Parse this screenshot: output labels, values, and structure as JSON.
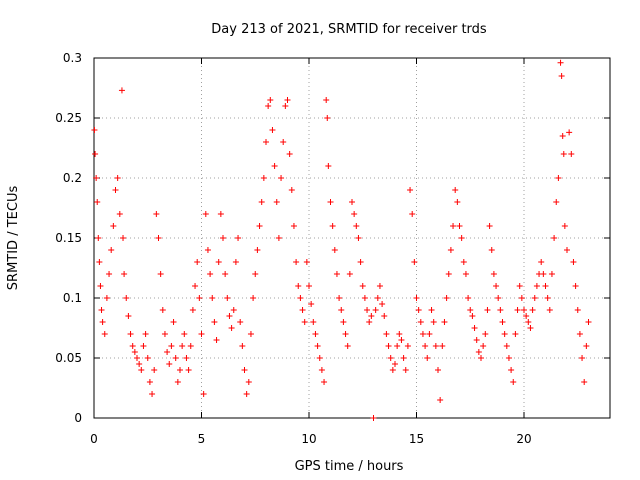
{
  "chart_data": {
    "type": "scatter",
    "title": "Day 213 of 2021, SRMTID for receiver trds",
    "xlabel": "GPS time / hours",
    "ylabel": "SRMTID / TECUs",
    "xlim": [
      0,
      24
    ],
    "ylim": [
      0,
      0.3
    ],
    "xticks": [
      0,
      5,
      10,
      15,
      20
    ],
    "xtick_labels": [
      "0",
      "5",
      "10",
      "15",
      "20"
    ],
    "yticks": [
      0,
      0.05,
      0.1,
      0.15,
      0.2,
      0.25,
      0.3
    ],
    "ytick_labels": [
      "0",
      "0.05",
      "0.1",
      "0.15",
      "0.2",
      "0.25",
      "0.3"
    ],
    "grid": true,
    "marker": "plus",
    "color": "#ff0000",
    "series": [
      {
        "name": "SRMTID",
        "points": [
          [
            0.02,
            0.24
          ],
          [
            0.05,
            0.22
          ],
          [
            0.1,
            0.2
          ],
          [
            0.15,
            0.18
          ],
          [
            0.2,
            0.15
          ],
          [
            0.25,
            0.13
          ],
          [
            0.3,
            0.11
          ],
          [
            0.35,
            0.09
          ],
          [
            0.4,
            0.08
          ],
          [
            0.5,
            0.07
          ],
          [
            0.6,
            0.1
          ],
          [
            0.7,
            0.12
          ],
          [
            0.8,
            0.14
          ],
          [
            0.9,
            0.16
          ],
          [
            1.0,
            0.19
          ],
          [
            1.1,
            0.2
          ],
          [
            1.2,
            0.17
          ],
          [
            1.3,
            0.273
          ],
          [
            1.35,
            0.15
          ],
          [
            1.4,
            0.12
          ],
          [
            1.5,
            0.1
          ],
          [
            1.6,
            0.085
          ],
          [
            1.7,
            0.07
          ],
          [
            1.8,
            0.06
          ],
          [
            1.9,
            0.055
          ],
          [
            2.0,
            0.05
          ],
          [
            2.1,
            0.045
          ],
          [
            2.2,
            0.04
          ],
          [
            2.3,
            0.06
          ],
          [
            2.4,
            0.07
          ],
          [
            2.5,
            0.05
          ],
          [
            2.6,
            0.03
          ],
          [
            2.7,
            0.02
          ],
          [
            2.8,
            0.04
          ],
          [
            2.9,
            0.17
          ],
          [
            3.0,
            0.15
          ],
          [
            3.1,
            0.12
          ],
          [
            3.2,
            0.09
          ],
          [
            3.3,
            0.07
          ],
          [
            3.4,
            0.055
          ],
          [
            3.5,
            0.045
          ],
          [
            3.6,
            0.06
          ],
          [
            3.7,
            0.08
          ],
          [
            3.8,
            0.05
          ],
          [
            3.9,
            0.03
          ],
          [
            4.0,
            0.04
          ],
          [
            4.1,
            0.06
          ],
          [
            4.2,
            0.07
          ],
          [
            4.3,
            0.05
          ],
          [
            4.4,
            0.04
          ],
          [
            4.5,
            0.06
          ],
          [
            4.6,
            0.09
          ],
          [
            4.7,
            0.11
          ],
          [
            4.8,
            0.13
          ],
          [
            4.9,
            0.1
          ],
          [
            5.0,
            0.07
          ],
          [
            5.1,
            0.02
          ],
          [
            5.2,
            0.17
          ],
          [
            5.3,
            0.14
          ],
          [
            5.4,
            0.12
          ],
          [
            5.5,
            0.1
          ],
          [
            5.6,
            0.08
          ],
          [
            5.7,
            0.065
          ],
          [
            5.8,
            0.13
          ],
          [
            5.9,
            0.17
          ],
          [
            6.0,
            0.15
          ],
          [
            6.1,
            0.12
          ],
          [
            6.2,
            0.1
          ],
          [
            6.3,
            0.085
          ],
          [
            6.4,
            0.075
          ],
          [
            6.5,
            0.09
          ],
          [
            6.6,
            0.13
          ],
          [
            6.7,
            0.15
          ],
          [
            6.8,
            0.08
          ],
          [
            6.9,
            0.06
          ],
          [
            7.0,
            0.04
          ],
          [
            7.1,
            0.02
          ],
          [
            7.2,
            0.03
          ],
          [
            7.3,
            0.07
          ],
          [
            7.4,
            0.1
          ],
          [
            7.5,
            0.12
          ],
          [
            7.6,
            0.14
          ],
          [
            7.7,
            0.16
          ],
          [
            7.8,
            0.18
          ],
          [
            7.9,
            0.2
          ],
          [
            8.0,
            0.23
          ],
          [
            8.1,
            0.26
          ],
          [
            8.2,
            0.265
          ],
          [
            8.3,
            0.24
          ],
          [
            8.4,
            0.21
          ],
          [
            8.5,
            0.18
          ],
          [
            8.6,
            0.15
          ],
          [
            8.7,
            0.2
          ],
          [
            8.8,
            0.23
          ],
          [
            8.9,
            0.26
          ],
          [
            9.0,
            0.265
          ],
          [
            9.1,
            0.22
          ],
          [
            9.2,
            0.19
          ],
          [
            9.3,
            0.16
          ],
          [
            9.4,
            0.13
          ],
          [
            9.5,
            0.11
          ],
          [
            9.6,
            0.1
          ],
          [
            9.7,
            0.09
          ],
          [
            9.8,
            0.08
          ],
          [
            9.9,
            0.13
          ],
          [
            10.0,
            0.11
          ],
          [
            10.1,
            0.095
          ],
          [
            10.2,
            0.08
          ],
          [
            10.3,
            0.07
          ],
          [
            10.4,
            0.06
          ],
          [
            10.5,
            0.05
          ],
          [
            10.6,
            0.04
          ],
          [
            10.7,
            0.03
          ],
          [
            10.8,
            0.265
          ],
          [
            10.85,
            0.25
          ],
          [
            10.9,
            0.21
          ],
          [
            11.0,
            0.18
          ],
          [
            11.1,
            0.16
          ],
          [
            11.2,
            0.14
          ],
          [
            11.3,
            0.12
          ],
          [
            11.4,
            0.1
          ],
          [
            11.5,
            0.09
          ],
          [
            11.6,
            0.08
          ],
          [
            11.7,
            0.07
          ],
          [
            11.8,
            0.06
          ],
          [
            11.9,
            0.12
          ],
          [
            12.0,
            0.18
          ],
          [
            12.1,
            0.17
          ],
          [
            12.2,
            0.16
          ],
          [
            12.3,
            0.15
          ],
          [
            12.4,
            0.13
          ],
          [
            12.5,
            0.11
          ],
          [
            12.6,
            0.1
          ],
          [
            12.7,
            0.09
          ],
          [
            12.8,
            0.08
          ],
          [
            12.9,
            0.085
          ],
          [
            13.0,
            0.0
          ],
          [
            13.1,
            0.09
          ],
          [
            13.2,
            0.1
          ],
          [
            13.3,
            0.11
          ],
          [
            13.4,
            0.095
          ],
          [
            13.5,
            0.085
          ],
          [
            13.6,
            0.07
          ],
          [
            13.7,
            0.06
          ],
          [
            13.8,
            0.05
          ],
          [
            13.9,
            0.04
          ],
          [
            14.0,
            0.045
          ],
          [
            14.1,
            0.06
          ],
          [
            14.2,
            0.07
          ],
          [
            14.3,
            0.065
          ],
          [
            14.4,
            0.05
          ],
          [
            14.5,
            0.04
          ],
          [
            14.6,
            0.06
          ],
          [
            14.7,
            0.19
          ],
          [
            14.8,
            0.17
          ],
          [
            14.9,
            0.13
          ],
          [
            15.0,
            0.1
          ],
          [
            15.1,
            0.09
          ],
          [
            15.2,
            0.08
          ],
          [
            15.3,
            0.07
          ],
          [
            15.4,
            0.06
          ],
          [
            15.5,
            0.05
          ],
          [
            15.6,
            0.07
          ],
          [
            15.7,
            0.09
          ],
          [
            15.8,
            0.08
          ],
          [
            15.9,
            0.06
          ],
          [
            16.0,
            0.04
          ],
          [
            16.1,
            0.015
          ],
          [
            16.2,
            0.06
          ],
          [
            16.3,
            0.08
          ],
          [
            16.4,
            0.1
          ],
          [
            16.5,
            0.12
          ],
          [
            16.6,
            0.14
          ],
          [
            16.7,
            0.16
          ],
          [
            16.8,
            0.19
          ],
          [
            16.9,
            0.18
          ],
          [
            17.0,
            0.16
          ],
          [
            17.1,
            0.15
          ],
          [
            17.2,
            0.13
          ],
          [
            17.3,
            0.12
          ],
          [
            17.4,
            0.1
          ],
          [
            17.5,
            0.09
          ],
          [
            17.6,
            0.085
          ],
          [
            17.7,
            0.075
          ],
          [
            17.8,
            0.065
          ],
          [
            17.9,
            0.055
          ],
          [
            18.0,
            0.05
          ],
          [
            18.1,
            0.06
          ],
          [
            18.2,
            0.07
          ],
          [
            18.3,
            0.09
          ],
          [
            18.4,
            0.16
          ],
          [
            18.5,
            0.14
          ],
          [
            18.6,
            0.12
          ],
          [
            18.7,
            0.11
          ],
          [
            18.8,
            0.1
          ],
          [
            18.9,
            0.09
          ],
          [
            19.0,
            0.08
          ],
          [
            19.1,
            0.07
          ],
          [
            19.2,
            0.06
          ],
          [
            19.3,
            0.05
          ],
          [
            19.4,
            0.04
          ],
          [
            19.5,
            0.03
          ],
          [
            19.6,
            0.07
          ],
          [
            19.7,
            0.09
          ],
          [
            19.8,
            0.11
          ],
          [
            19.9,
            0.1
          ],
          [
            20.0,
            0.09
          ],
          [
            20.1,
            0.085
          ],
          [
            20.2,
            0.08
          ],
          [
            20.3,
            0.075
          ],
          [
            20.4,
            0.09
          ],
          [
            20.5,
            0.1
          ],
          [
            20.6,
            0.11
          ],
          [
            20.7,
            0.12
          ],
          [
            20.8,
            0.13
          ],
          [
            20.9,
            0.12
          ],
          [
            21.0,
            0.11
          ],
          [
            21.1,
            0.1
          ],
          [
            21.2,
            0.09
          ],
          [
            21.3,
            0.12
          ],
          [
            21.4,
            0.15
          ],
          [
            21.5,
            0.18
          ],
          [
            21.6,
            0.2
          ],
          [
            21.7,
            0.296
          ],
          [
            21.75,
            0.285
          ],
          [
            21.8,
            0.235
          ],
          [
            21.85,
            0.22
          ],
          [
            21.9,
            0.16
          ],
          [
            22.0,
            0.14
          ],
          [
            22.1,
            0.238
          ],
          [
            22.2,
            0.22
          ],
          [
            22.3,
            0.13
          ],
          [
            22.4,
            0.11
          ],
          [
            22.5,
            0.09
          ],
          [
            22.6,
            0.07
          ],
          [
            22.7,
            0.05
          ],
          [
            22.8,
            0.03
          ],
          [
            22.9,
            0.06
          ],
          [
            23.0,
            0.08
          ]
        ]
      }
    ]
  }
}
